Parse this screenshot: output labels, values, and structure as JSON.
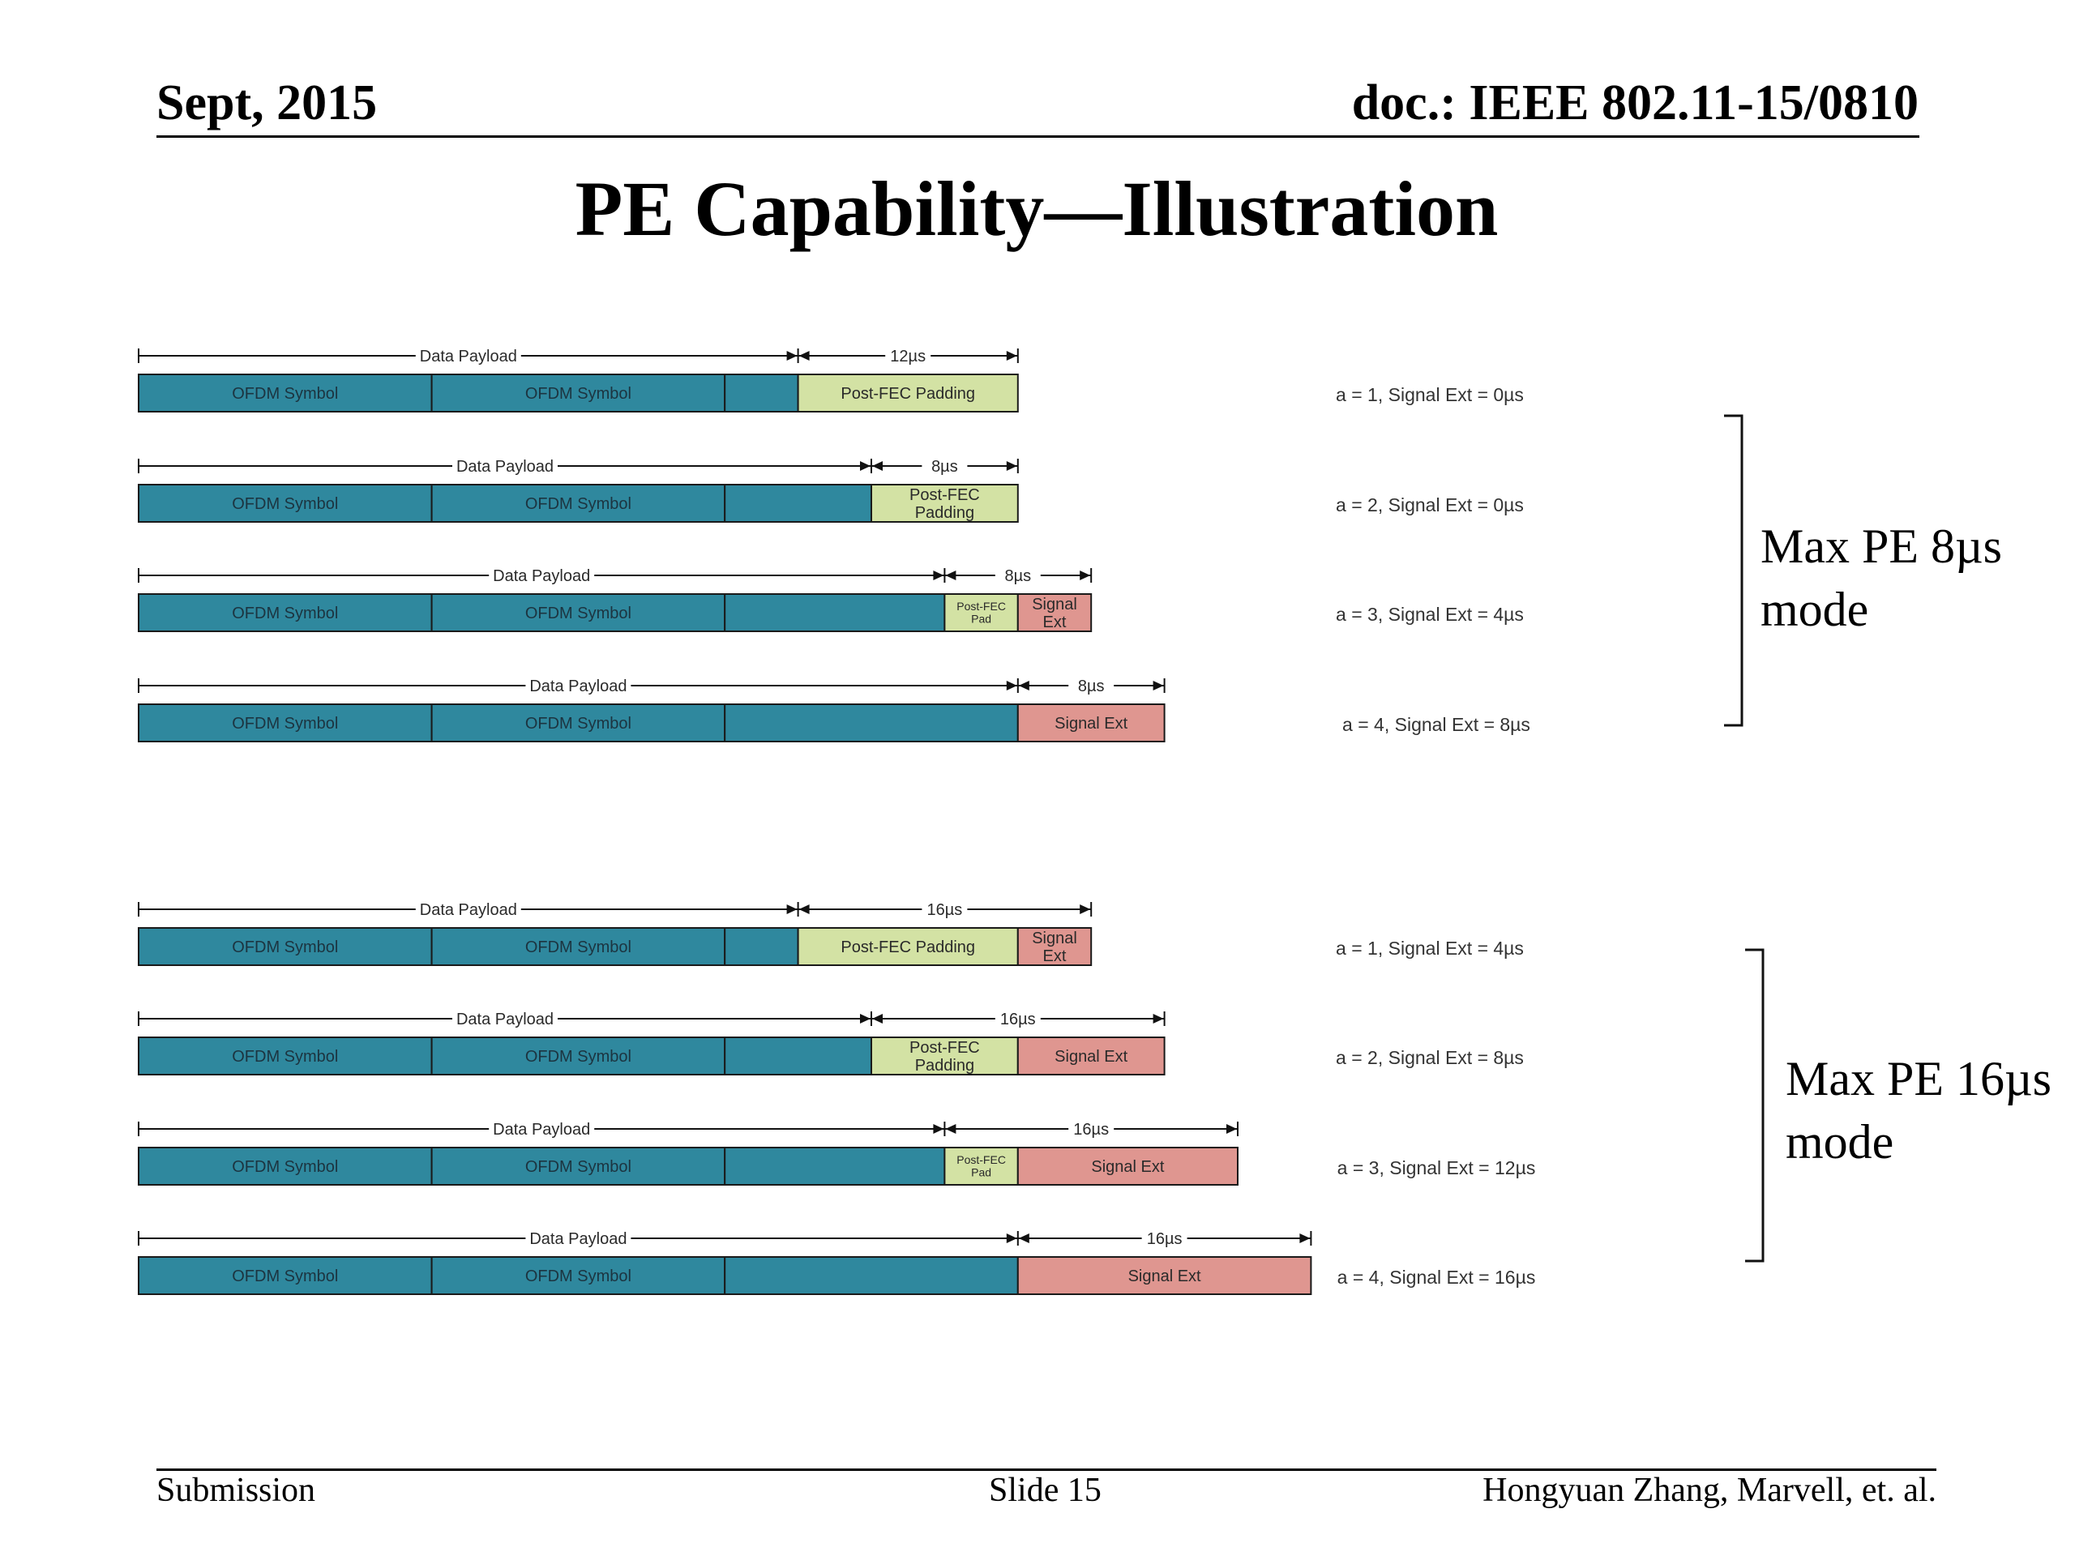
{
  "header": {
    "date": "Sept, 2015",
    "doc": "doc.: IEEE 802.11-15/0810"
  },
  "title": "PE Capability—Illustration",
  "colors": {
    "ofdm": "#2f889e",
    "padding": "#d3e2a4",
    "signal_ext": "#df9690",
    "border": "#1a1a1a"
  },
  "labels": {
    "data_payload": "Data Payload",
    "ofdm_symbol": "OFDM Symbol"
  },
  "symbol_duration_us": 16,
  "groups": [
    {
      "mode_label": [
        "Max PE 8µs",
        "mode"
      ],
      "rows": [
        {
          "payload_us": 36,
          "pad_us": 12,
          "sigext_us": 0,
          "pe_label": "12µs",
          "pad_label": [
            "Post-FEC Padding"
          ],
          "sigext_label": [],
          "caption": "a = 1, Signal Ext = 0µs"
        },
        {
          "payload_us": 40,
          "pad_us": 8,
          "sigext_us": 0,
          "pe_label": "8µs",
          "pad_label": [
            "Post-FEC",
            "Padding"
          ],
          "sigext_label": [],
          "caption": "a = 2, Signal Ext = 0µs"
        },
        {
          "payload_us": 44,
          "pad_us": 4,
          "sigext_us": 4,
          "pe_label": "8µs",
          "pad_label": [
            "Post-FEC",
            "Pad"
          ],
          "sigext_label": [
            "Signal",
            "Ext"
          ],
          "caption": "a = 3, Signal Ext = 4µs"
        },
        {
          "payload_us": 48,
          "pad_us": 0,
          "sigext_us": 8,
          "pe_label": "8µs",
          "pad_label": [],
          "sigext_label": [
            "Signal Ext"
          ],
          "caption": "a = 4, Signal Ext = 8µs"
        }
      ]
    },
    {
      "mode_label": [
        "Max PE 16µs",
        "mode"
      ],
      "rows": [
        {
          "payload_us": 36,
          "pad_us": 12,
          "sigext_us": 4,
          "pe_label": "16µs",
          "pad_label": [
            "Post-FEC Padding"
          ],
          "sigext_label": [
            "Signal",
            "Ext"
          ],
          "caption": "a = 1, Signal Ext = 4µs"
        },
        {
          "payload_us": 40,
          "pad_us": 8,
          "sigext_us": 8,
          "pe_label": "16µs",
          "pad_label": [
            "Post-FEC",
            "Padding"
          ],
          "sigext_label": [
            "Signal Ext"
          ],
          "caption": "a = 2, Signal Ext = 8µs"
        },
        {
          "payload_us": 44,
          "pad_us": 4,
          "sigext_us": 12,
          "pe_label": "16µs",
          "pad_label": [
            "Post-FEC",
            "Pad"
          ],
          "sigext_label": [
            "Signal Ext"
          ],
          "caption": "a = 3, Signal Ext = 12µs"
        },
        {
          "payload_us": 48,
          "pad_us": 0,
          "sigext_us": 16,
          "pe_label": "16µs",
          "pad_label": [],
          "sigext_label": [
            "Signal Ext"
          ],
          "caption": "a = 4, Signal Ext = 16µs"
        }
      ]
    }
  ],
  "footer": {
    "left": "Submission",
    "center": "Slide 15",
    "right": "Hongyuan Zhang,  Marvell, et. al."
  }
}
